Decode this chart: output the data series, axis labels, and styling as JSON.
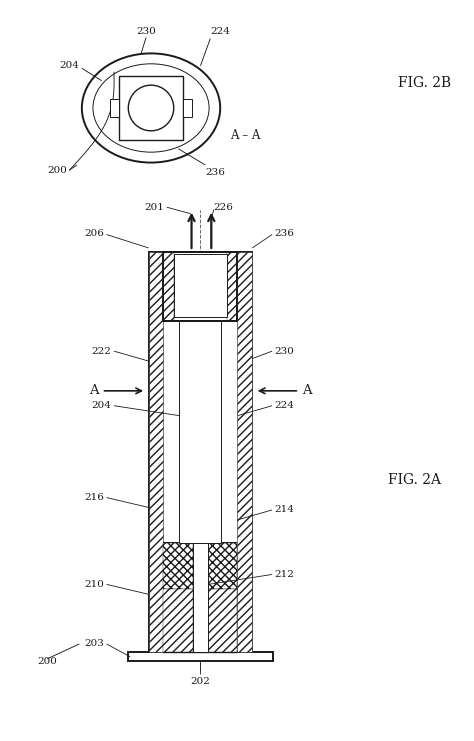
{
  "bg_color": "#ffffff",
  "line_color": "#1a1a1a",
  "fig_width": 4.74,
  "fig_height": 7.41,
  "fig2b_label": "FIG. 2B",
  "fig2a_label": "FIG. 2A",
  "labels": {
    "200_top": "200",
    "204_top": "204",
    "230_top": "230",
    "224_top": "224",
    "236_top": "236",
    "A_A": "A – A",
    "201": "201",
    "206": "206",
    "226": "226",
    "236_mid": "236",
    "230_mid": "230",
    "224_mid": "224",
    "222": "222",
    "204_mid": "204",
    "216": "216",
    "214": "214",
    "212": "212",
    "210": "210",
    "203": "203",
    "202": "202",
    "200_bot": "200",
    "A_left": "A",
    "A_right": "A"
  }
}
